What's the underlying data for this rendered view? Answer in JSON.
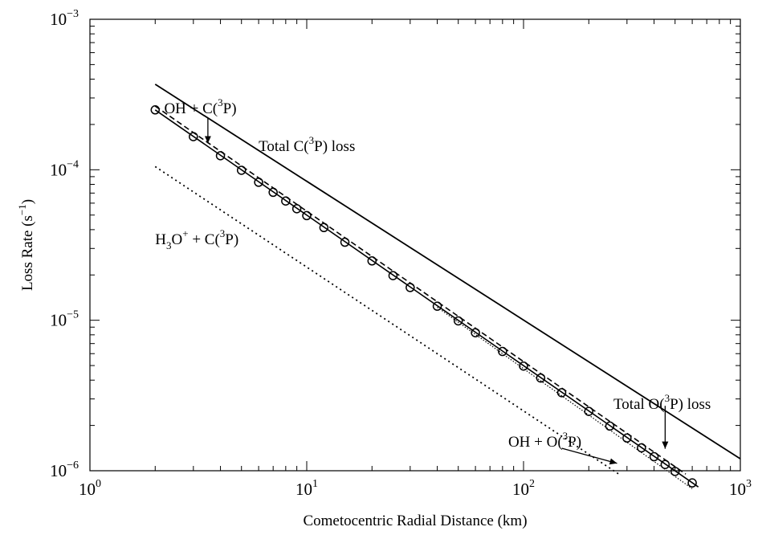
{
  "chart_data": {
    "type": "line",
    "xlabel": "Cometocentric Radial Distance (km)",
    "ylabel": "Loss Rate (s",
    "ylabel_exp": "−1",
    "ylabel_close": ")",
    "xscale": "log",
    "yscale": "log",
    "xlim": [
      1,
      1000
    ],
    "ylim": [
      1e-06,
      0.001
    ],
    "x_ticks": [
      {
        "base": "10",
        "exp": "0"
      },
      {
        "base": "10",
        "exp": "1"
      },
      {
        "base": "10",
        "exp": "2"
      },
      {
        "base": "10",
        "exp": "3"
      }
    ],
    "y_ticks": [
      {
        "base": "10",
        "exp": "−6"
      },
      {
        "base": "10",
        "exp": "−5"
      },
      {
        "base": "10",
        "exp": "−4"
      },
      {
        "base": "10",
        "exp": "−3"
      }
    ],
    "grid": false,
    "legend": "none",
    "series": [
      {
        "style": "solid",
        "x": [
          2,
          1000
        ],
        "y": [
          0.00037,
          1.2e-06
        ]
      },
      {
        "style": "solid-with-circles",
        "x": [
          2,
          3,
          4,
          5,
          6,
          7,
          8,
          9,
          10,
          12,
          15,
          20,
          25,
          30,
          40,
          50,
          60,
          80,
          100,
          120,
          150,
          200,
          250,
          300,
          350,
          400,
          450,
          500,
          600
        ],
        "y": [
          0.00025,
          0.000166,
          0.000124,
          9.92e-05,
          8.26e-05,
          7.08e-05,
          6.2e-05,
          5.51e-05,
          4.96e-05,
          4.13e-05,
          3.3e-05,
          2.48e-05,
          1.98e-05,
          1.65e-05,
          1.24e-05,
          9.9e-06,
          8.26e-06,
          6.2e-06,
          4.96e-06,
          4.13e-06,
          3.3e-06,
          2.48e-06,
          1.98e-06,
          1.65e-06,
          1.42e-06,
          1.24e-06,
          1.1e-06,
          9.9e-07,
          8.3e-07
        ],
        "line_x": [
          2,
          640
        ],
        "line_y": [
          0.00025,
          7.8e-07
        ]
      },
      {
        "style": "dashed",
        "x": [
          2,
          560
        ],
        "y": [
          0.000265,
          9.5e-07
        ]
      },
      {
        "style": "dotted-fine",
        "x": [
          40,
          600
        ],
        "y": [
          1.22e-05,
          7.6e-07
        ]
      },
      {
        "style": "dotted",
        "x": [
          2,
          275
        ],
        "y": [
          0.000105,
          9.5e-07
        ]
      }
    ],
    "annotations": [
      {
        "id": "oh_c",
        "parts": [
          {
            "t": "OH + C("
          },
          {
            "t": "3",
            "sup": true
          },
          {
            "t": "P)"
          }
        ],
        "text_x": 2.2,
        "text_y": 0.000237,
        "arrow_from": [
          3.5,
          0.00022
        ],
        "arrow_to": [
          3.5,
          0.00015
        ]
      },
      {
        "id": "total_c",
        "parts": [
          {
            "t": "Total C("
          },
          {
            "t": "3",
            "sup": true
          },
          {
            "t": "P) loss"
          }
        ],
        "text_x": 6.0,
        "text_y": 0.000133
      },
      {
        "id": "h3o_c",
        "parts": [
          {
            "t": "H"
          },
          {
            "t": "3",
            "sub": true
          },
          {
            "t": "O"
          },
          {
            "t": "+",
            "sup": true
          },
          {
            "t": " + C("
          },
          {
            "t": "3",
            "sup": true
          },
          {
            "t": "P)"
          }
        ],
        "text_x": 2.0,
        "text_y": 3.2e-05
      },
      {
        "id": "total_o",
        "parts": [
          {
            "t": "Total O("
          },
          {
            "t": "3",
            "sup": true
          },
          {
            "t": "P) loss"
          }
        ],
        "text_x": 260,
        "text_y": 2.58e-06,
        "arrow_from": [
          450,
          2.7e-06
        ],
        "arrow_to": [
          450,
          1.4e-06
        ]
      },
      {
        "id": "oh_o",
        "parts": [
          {
            "t": "OH + O("
          },
          {
            "t": "3",
            "sup": true
          },
          {
            "t": "P)"
          }
        ],
        "text_x": 85,
        "text_y": 1.45e-06,
        "arrow_from": [
          150,
          1.41e-06
        ],
        "arrow_to": [
          270,
          1.12e-06
        ]
      }
    ]
  }
}
